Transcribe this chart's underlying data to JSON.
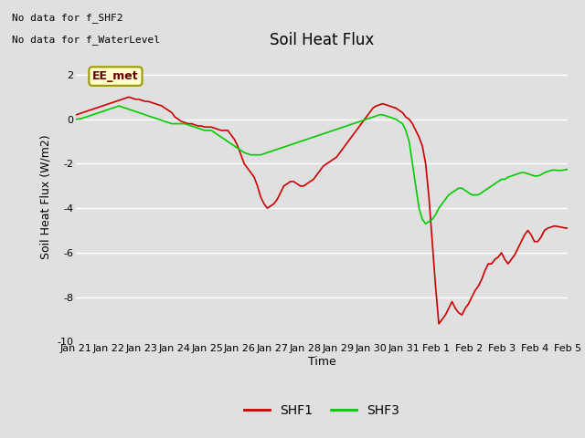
{
  "title": "Soil Heat Flux",
  "ylabel": "Soil Heat Flux (W/m2)",
  "xlabel": "Time",
  "ylim": [
    -10,
    3
  ],
  "yticks": [
    -10,
    -8,
    -6,
    -4,
    -2,
    0,
    2
  ],
  "background_color": "#e0e0e0",
  "plot_bg_color": "#e0e0e0",
  "no_data_text1": "No data for f_SHF2",
  "no_data_text2": "No data for f_WaterLevel",
  "legend_label_text": "EE_met",
  "x_labels": [
    "Jan 21",
    "Jan 22",
    "Jan 23",
    "Jan 24",
    "Jan 25",
    "Jan 26",
    "Jan 27",
    "Jan 28",
    "Jan 29",
    "Jan 30",
    "Jan 31",
    "Feb 1",
    "Feb 2",
    "Feb 3",
    "Feb 4",
    "Feb 5"
  ],
  "shf1_color": "#cc0000",
  "shf3_color": "#00cc00",
  "title_fontsize": 12,
  "axis_fontsize": 9,
  "tick_fontsize": 8,
  "shf1_x": [
    0,
    1,
    2,
    3,
    4,
    5,
    6,
    7,
    8,
    9,
    10,
    11,
    12,
    13,
    14,
    15,
    16,
    17,
    18,
    19,
    20,
    21,
    22,
    23,
    24,
    25,
    26,
    27,
    28,
    29,
    30,
    31,
    32,
    33,
    34,
    35,
    36,
    37,
    38,
    39,
    40,
    41,
    42,
    43,
    44,
    45,
    46,
    47,
    48,
    49,
    50,
    51,
    52,
    53,
    54,
    55,
    56,
    57,
    58,
    59,
    60,
    61,
    62,
    63,
    64,
    65,
    66,
    67,
    68,
    69,
    70,
    71,
    72,
    73,
    74,
    75,
    76,
    77,
    78,
    79,
    80,
    81,
    82,
    83,
    84,
    85,
    86,
    87,
    88,
    89,
    90,
    91,
    92,
    93,
    94,
    95,
    96,
    97,
    98,
    99,
    100,
    101,
    102,
    103,
    104,
    105,
    106,
    107,
    108,
    109,
    110,
    111,
    112,
    113,
    114,
    115,
    116,
    117,
    118,
    119,
    120,
    121,
    122,
    123,
    124,
    125,
    126,
    127,
    128,
    129,
    130,
    131,
    132,
    133,
    134,
    135,
    136,
    137,
    138,
    139,
    140,
    141,
    142,
    143,
    144,
    145,
    146,
    147,
    148,
    149
  ],
  "shf1_y": [
    0.2,
    0.25,
    0.3,
    0.35,
    0.4,
    0.45,
    0.5,
    0.55,
    0.6,
    0.65,
    0.7,
    0.75,
    0.8,
    0.85,
    0.9,
    0.95,
    1.0,
    0.95,
    0.9,
    0.9,
    0.85,
    0.8,
    0.8,
    0.75,
    0.7,
    0.65,
    0.6,
    0.5,
    0.4,
    0.3,
    0.1,
    0.0,
    -0.1,
    -0.15,
    -0.2,
    -0.2,
    -0.25,
    -0.3,
    -0.3,
    -0.35,
    -0.35,
    -0.35,
    -0.4,
    -0.45,
    -0.5,
    -0.5,
    -0.5,
    -0.7,
    -0.9,
    -1.2,
    -1.6,
    -2.0,
    -2.2,
    -2.4,
    -2.6,
    -3.0,
    -3.5,
    -3.8,
    -4.0,
    -3.9,
    -3.8,
    -3.6,
    -3.3,
    -3.0,
    -2.9,
    -2.8,
    -2.8,
    -2.9,
    -3.0,
    -3.0,
    -2.9,
    -2.8,
    -2.7,
    -2.5,
    -2.3,
    -2.1,
    -2.0,
    -1.9,
    -1.8,
    -1.7,
    -1.5,
    -1.3,
    -1.1,
    -0.9,
    -0.7,
    -0.5,
    -0.3,
    -0.1,
    0.1,
    0.3,
    0.5,
    0.6,
    0.65,
    0.7,
    0.65,
    0.6,
    0.55,
    0.5,
    0.4,
    0.3,
    0.1,
    0.0,
    -0.2,
    -0.5,
    -0.8,
    -1.2,
    -2.0,
    -3.5,
    -5.5,
    -7.5,
    -9.2,
    -9.0,
    -8.8,
    -8.5,
    -8.2,
    -8.5,
    -8.7,
    -8.8,
    -8.5,
    -8.3,
    -8.0,
    -7.7,
    -7.5,
    -7.2,
    -6.8,
    -6.5,
    -6.5,
    -6.3,
    -6.2,
    -6.0,
    -6.3,
    -6.5,
    -6.3,
    -6.1,
    -5.8,
    -5.5,
    -5.2,
    -5.0,
    -5.2,
    -5.5,
    -5.5,
    -5.3,
    -5.0,
    -4.9,
    -4.85,
    -4.8,
    -4.82,
    -4.85,
    -4.88,
    -4.9
  ],
  "shf3_x": [
    0,
    1,
    2,
    3,
    4,
    5,
    6,
    7,
    8,
    9,
    10,
    11,
    12,
    13,
    14,
    15,
    16,
    17,
    18,
    19,
    20,
    21,
    22,
    23,
    24,
    25,
    26,
    27,
    28,
    29,
    30,
    31,
    32,
    33,
    34,
    35,
    36,
    37,
    38,
    39,
    40,
    41,
    42,
    43,
    44,
    45,
    46,
    47,
    48,
    49,
    50,
    51,
    52,
    53,
    54,
    55,
    56,
    57,
    58,
    59,
    60,
    61,
    62,
    63,
    64,
    65,
    66,
    67,
    68,
    69,
    70,
    71,
    72,
    73,
    74,
    75,
    76,
    77,
    78,
    79,
    80,
    81,
    82,
    83,
    84,
    85,
    86,
    87,
    88,
    89,
    90,
    91,
    92,
    93,
    94,
    95,
    96,
    97,
    98,
    99,
    100,
    101,
    102,
    103,
    104,
    105,
    106,
    107,
    108,
    109,
    110,
    111,
    112,
    113,
    114,
    115,
    116,
    117,
    118,
    119,
    120,
    121,
    122,
    123,
    124,
    125,
    126,
    127,
    128,
    129,
    130,
    131,
    132,
    133,
    134,
    135,
    136,
    137,
    138,
    139,
    140,
    141,
    142,
    143,
    144,
    145,
    146,
    147,
    148,
    149
  ],
  "shf3_y": [
    0.0,
    0.02,
    0.05,
    0.1,
    0.15,
    0.2,
    0.25,
    0.3,
    0.35,
    0.4,
    0.45,
    0.5,
    0.55,
    0.6,
    0.55,
    0.5,
    0.45,
    0.4,
    0.35,
    0.3,
    0.25,
    0.2,
    0.15,
    0.1,
    0.05,
    0.0,
    -0.05,
    -0.1,
    -0.15,
    -0.2,
    -0.2,
    -0.2,
    -0.2,
    -0.2,
    -0.25,
    -0.3,
    -0.35,
    -0.4,
    -0.45,
    -0.5,
    -0.5,
    -0.5,
    -0.6,
    -0.7,
    -0.8,
    -0.9,
    -1.0,
    -1.1,
    -1.2,
    -1.3,
    -1.4,
    -1.5,
    -1.55,
    -1.6,
    -1.6,
    -1.6,
    -1.6,
    -1.55,
    -1.5,
    -1.45,
    -1.4,
    -1.35,
    -1.3,
    -1.25,
    -1.2,
    -1.15,
    -1.1,
    -1.05,
    -1.0,
    -0.95,
    -0.9,
    -0.85,
    -0.8,
    -0.75,
    -0.7,
    -0.65,
    -0.6,
    -0.55,
    -0.5,
    -0.45,
    -0.4,
    -0.35,
    -0.3,
    -0.25,
    -0.2,
    -0.15,
    -0.1,
    -0.05,
    0.0,
    0.05,
    0.1,
    0.15,
    0.2,
    0.2,
    0.15,
    0.1,
    0.05,
    0.0,
    -0.1,
    -0.2,
    -0.5,
    -1.0,
    -2.0,
    -3.0,
    -4.0,
    -4.5,
    -4.7,
    -4.6,
    -4.5,
    -4.3,
    -4.0,
    -3.8,
    -3.6,
    -3.4,
    -3.3,
    -3.2,
    -3.1,
    -3.1,
    -3.2,
    -3.3,
    -3.4,
    -3.4,
    -3.4,
    -3.3,
    -3.2,
    -3.1,
    -3.0,
    -2.9,
    -2.8,
    -2.7,
    -2.7,
    -2.6,
    -2.55,
    -2.5,
    -2.45,
    -2.4,
    -2.4,
    -2.45,
    -2.5,
    -2.55,
    -2.55,
    -2.5,
    -2.4,
    -2.35,
    -2.3,
    -2.28,
    -2.3,
    -2.3,
    -2.28,
    -2.25
  ]
}
